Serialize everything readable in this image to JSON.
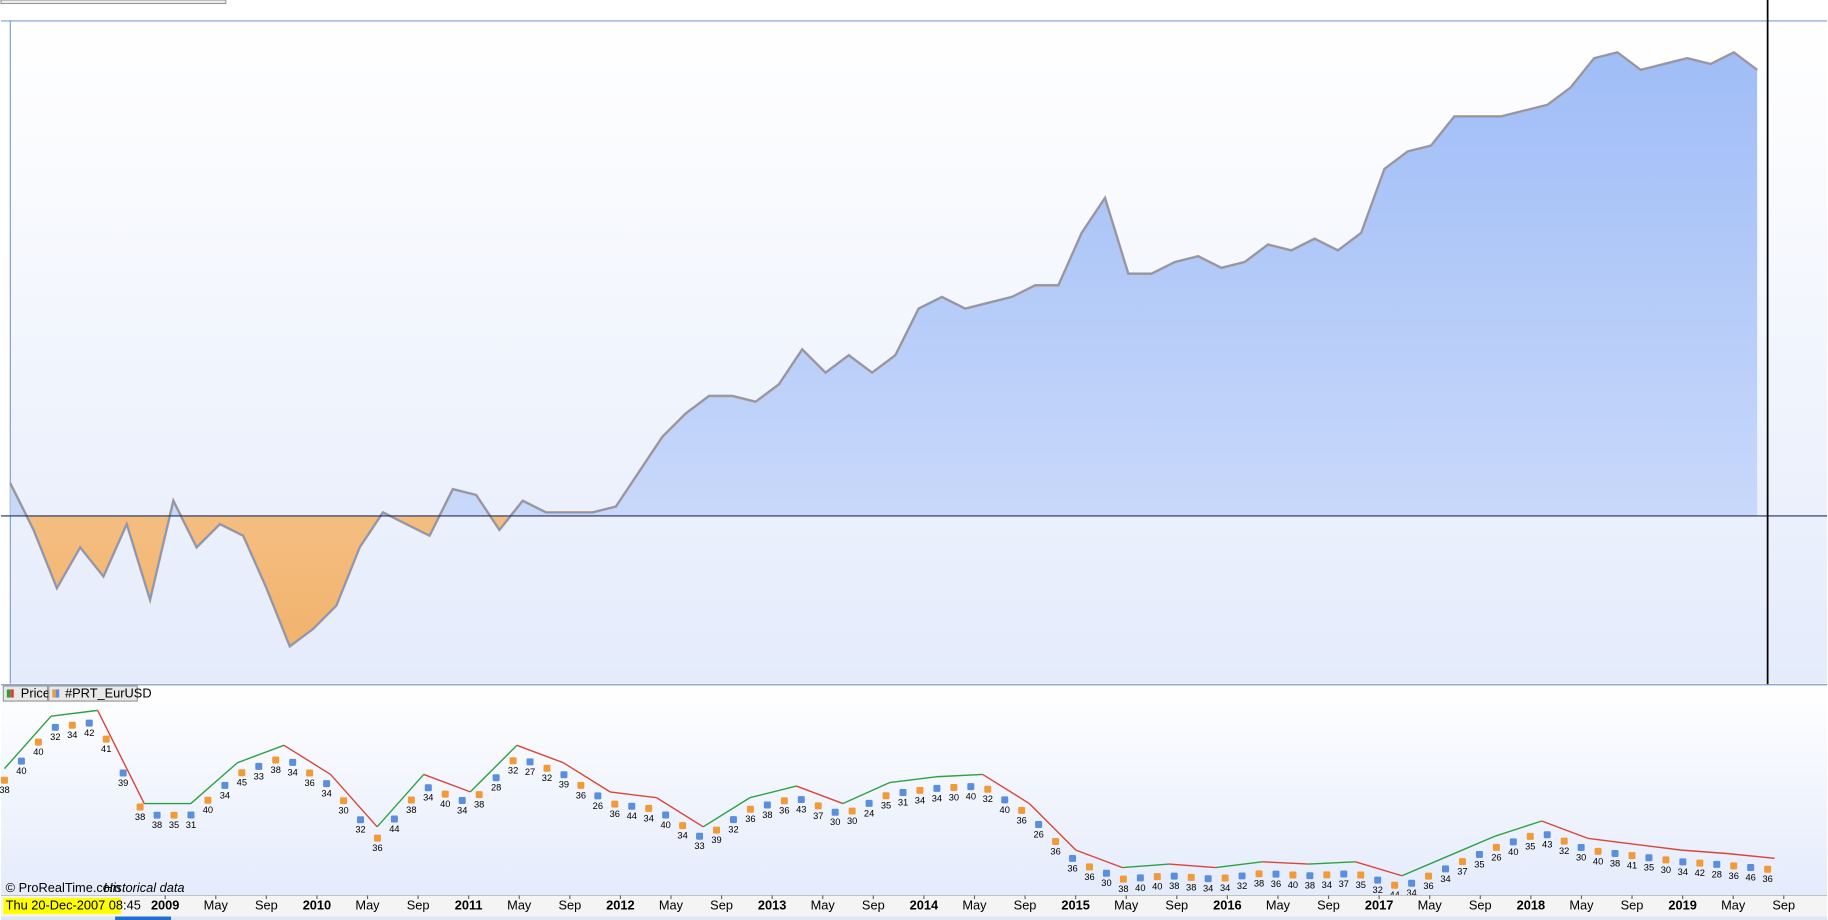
{
  "equity_panel": {
    "values": [
      28,
      -12,
      -62,
      -27,
      -52,
      -7,
      -72,
      13,
      -27,
      -7,
      -17,
      -62,
      -112,
      -97,
      -77,
      -27,
      3,
      -7,
      -17,
      23,
      18,
      -12,
      13,
      3,
      3,
      3,
      8,
      38,
      68,
      88,
      103,
      103,
      98,
      113,
      143,
      123,
      138,
      123,
      138,
      178,
      188,
      178,
      183,
      188,
      198,
      198,
      243,
      273,
      208,
      208,
      218,
      223,
      213,
      218,
      233,
      228,
      238,
      228,
      243,
      298,
      313,
      318,
      343,
      343,
      343,
      348,
      353,
      368,
      393,
      398,
      383,
      388,
      393,
      388,
      398,
      383
    ],
    "ylim": [
      -144,
      425
    ]
  },
  "price_panel": {
    "legend": [
      "Price",
      "#PRT_EurUSD"
    ],
    "values": [
      110,
      155,
      160,
      80,
      80,
      115,
      130,
      105,
      60,
      105,
      90,
      130,
      115,
      90,
      85,
      60,
      85,
      95,
      80,
      98,
      103,
      105,
      80,
      40,
      25,
      28,
      25,
      30,
      28,
      30,
      18,
      35,
      52,
      65,
      50,
      45,
      40,
      37,
      33
    ],
    "ylim": [
      0,
      166
    ],
    "signals": [
      38,
      40,
      40,
      32,
      34,
      42,
      41,
      39,
      38,
      38,
      35,
      31,
      40,
      34,
      45,
      33,
      38,
      34,
      36,
      34,
      30,
      32,
      36,
      44,
      38,
      34,
      40,
      34,
      38,
      28,
      32,
      27,
      32,
      39,
      36,
      26,
      36,
      44,
      34,
      40,
      34,
      33,
      39,
      32,
      36,
      38,
      36,
      43,
      37,
      30,
      30,
      24,
      35,
      31,
      34,
      34,
      30,
      40,
      32,
      40,
      36,
      26,
      36,
      36,
      36,
      30,
      38,
      40,
      40,
      38,
      38,
      34,
      34,
      32,
      38,
      36,
      40,
      38,
      34,
      37,
      35,
      32,
      44,
      34,
      36,
      34,
      37,
      35,
      26,
      40,
      35,
      43,
      32,
      30,
      40,
      38,
      41,
      35,
      30,
      34,
      42,
      28,
      36,
      46,
      36
    ]
  },
  "x_axis": {
    "cursor_label": "Thu 20-Dec-2007 08:45",
    "labels": [
      "2009",
      "May",
      "Sep",
      "2010",
      "May",
      "Sep",
      "2011",
      "May",
      "Sep",
      "2012",
      "May",
      "Sep",
      "2013",
      "May",
      "Sep",
      "2014",
      "May",
      "Sep",
      "2015",
      "May",
      "Sep",
      "2016",
      "May",
      "Sep",
      "2017",
      "May",
      "Sep",
      "2018",
      "May",
      "Sep",
      "2019",
      "May",
      "Sep"
    ]
  },
  "footer": {
    "source": "© ProRealTime.com",
    "note": "Historical data"
  }
}
